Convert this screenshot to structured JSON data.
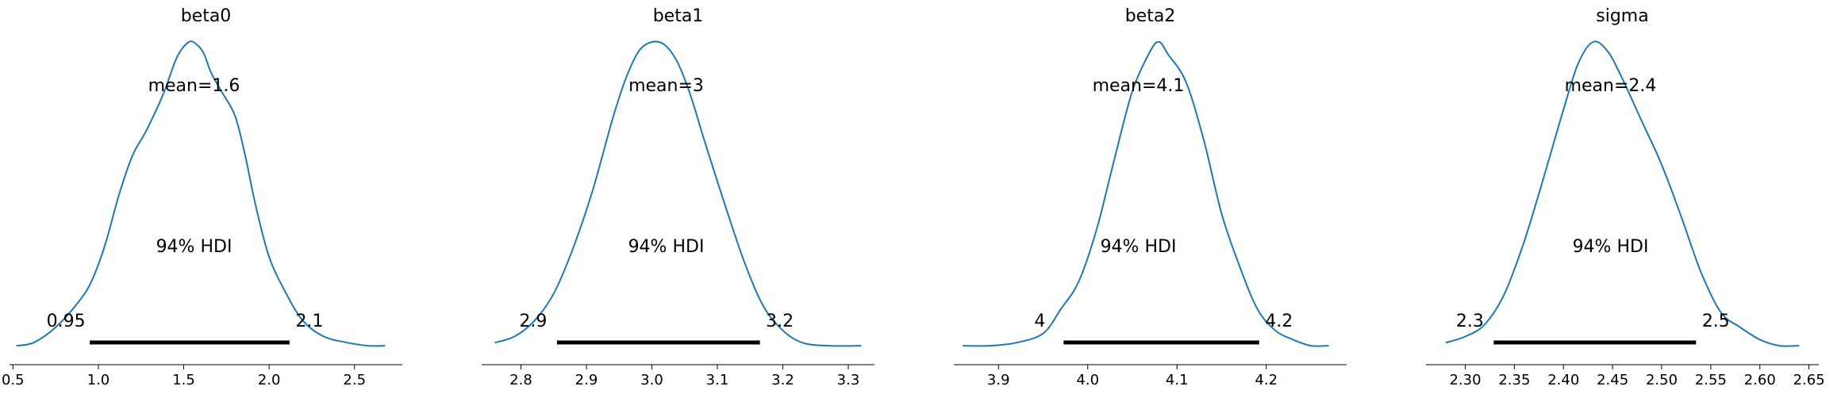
{
  "chart_data": [
    {
      "type": "density",
      "title": "beta0",
      "xlim": [
        0.48,
        2.78
      ],
      "xticks": [
        "0.5",
        "1.0",
        "1.5",
        "2.0",
        "2.5"
      ],
      "xtick_values": [
        0.5,
        1.0,
        1.5,
        2.0,
        2.5
      ],
      "mean_label": "mean=1.6",
      "hdi_label": "94% HDI",
      "hdi": [
        0.95,
        2.12
      ],
      "hdi_low_label": "0.95",
      "hdi_high_label": "2.1",
      "density": {
        "x": [
          0.52,
          0.62,
          0.75,
          0.88,
          0.96,
          1.04,
          1.12,
          1.2,
          1.28,
          1.38,
          1.46,
          1.53,
          1.58,
          1.62,
          1.66,
          1.72,
          1.8,
          1.86,
          1.92,
          2.0,
          2.1,
          2.2,
          2.32,
          2.46,
          2.58,
          2.68
        ],
        "y": [
          0.01,
          0.02,
          0.07,
          0.15,
          0.22,
          0.34,
          0.5,
          0.63,
          0.71,
          0.83,
          0.95,
          1.0,
          0.99,
          0.96,
          0.9,
          0.84,
          0.76,
          0.63,
          0.47,
          0.3,
          0.18,
          0.09,
          0.04,
          0.02,
          0.01,
          0.01
        ]
      }
    },
    {
      "type": "density",
      "title": "beta1",
      "xlim": [
        2.74,
        3.34
      ],
      "xticks": [
        "2.8",
        "2.9",
        "3.0",
        "3.1",
        "3.2",
        "3.3"
      ],
      "xtick_values": [
        2.8,
        2.9,
        3.0,
        3.1,
        3.2,
        3.3
      ],
      "mean_label": "mean=3",
      "hdi_label": "94% HDI",
      "hdi": [
        2.855,
        3.165
      ],
      "hdi_low_label": "2.9",
      "hdi_high_label": "3.2",
      "density": {
        "x": [
          2.76,
          2.79,
          2.82,
          2.85,
          2.88,
          2.91,
          2.94,
          2.96,
          2.98,
          3.0,
          3.02,
          3.04,
          3.06,
          3.08,
          3.11,
          3.14,
          3.17,
          3.2,
          3.23,
          3.27,
          3.32
        ],
        "y": [
          0.02,
          0.04,
          0.09,
          0.18,
          0.33,
          0.52,
          0.75,
          0.88,
          0.97,
          1.0,
          0.99,
          0.93,
          0.82,
          0.68,
          0.48,
          0.29,
          0.14,
          0.06,
          0.02,
          0.01,
          0.01
        ]
      }
    },
    {
      "type": "density",
      "title": "beta2",
      "xlim": [
        3.85,
        4.29
      ],
      "xticks": [
        "3.9",
        "4.0",
        "4.1",
        "4.2"
      ],
      "xtick_values": [
        3.9,
        4.0,
        4.1,
        4.2
      ],
      "mean_label": "mean=4.1",
      "hdi_label": "94% HDI",
      "hdi": [
        3.973,
        4.192
      ],
      "hdi_low_label": "4",
      "hdi_high_label": "4.2",
      "density": {
        "x": [
          3.86,
          3.89,
          3.92,
          3.95,
          3.97,
          3.99,
          4.01,
          4.03,
          4.05,
          4.07,
          4.08,
          4.09,
          4.11,
          4.13,
          4.15,
          4.17,
          4.19,
          4.21,
          4.23,
          4.25,
          4.27
        ],
        "y": [
          0.01,
          0.01,
          0.02,
          0.05,
          0.13,
          0.22,
          0.39,
          0.62,
          0.84,
          0.97,
          1.0,
          0.96,
          0.87,
          0.68,
          0.44,
          0.27,
          0.13,
          0.06,
          0.03,
          0.01,
          0.01
        ]
      }
    },
    {
      "type": "density",
      "title": "sigma",
      "xlim": [
        2.26,
        2.66
      ],
      "xticks": [
        "2.30",
        "2.35",
        "2.40",
        "2.45",
        "2.50",
        "2.55",
        "2.60",
        "2.65"
      ],
      "xtick_values": [
        2.3,
        2.35,
        2.4,
        2.45,
        2.5,
        2.55,
        2.6,
        2.65
      ],
      "mean_label": "mean=2.4",
      "hdi_label": "94% HDI",
      "hdi": [
        2.329,
        2.535
      ],
      "hdi_low_label": "2.3",
      "hdi_high_label": "2.5",
      "density": {
        "x": [
          2.28,
          2.3,
          2.32,
          2.34,
          2.36,
          2.38,
          2.4,
          2.415,
          2.43,
          2.445,
          2.46,
          2.48,
          2.5,
          2.52,
          2.54,
          2.56,
          2.58,
          2.6,
          2.62,
          2.64
        ],
        "y": [
          0.02,
          0.04,
          0.08,
          0.18,
          0.35,
          0.56,
          0.78,
          0.93,
          1.0,
          0.97,
          0.88,
          0.74,
          0.6,
          0.43,
          0.25,
          0.12,
          0.07,
          0.03,
          0.01,
          0.01
        ]
      }
    }
  ],
  "colors": {
    "density_line": "#1f77b4",
    "hdi_bar": "#000000",
    "axis": "#000000"
  }
}
